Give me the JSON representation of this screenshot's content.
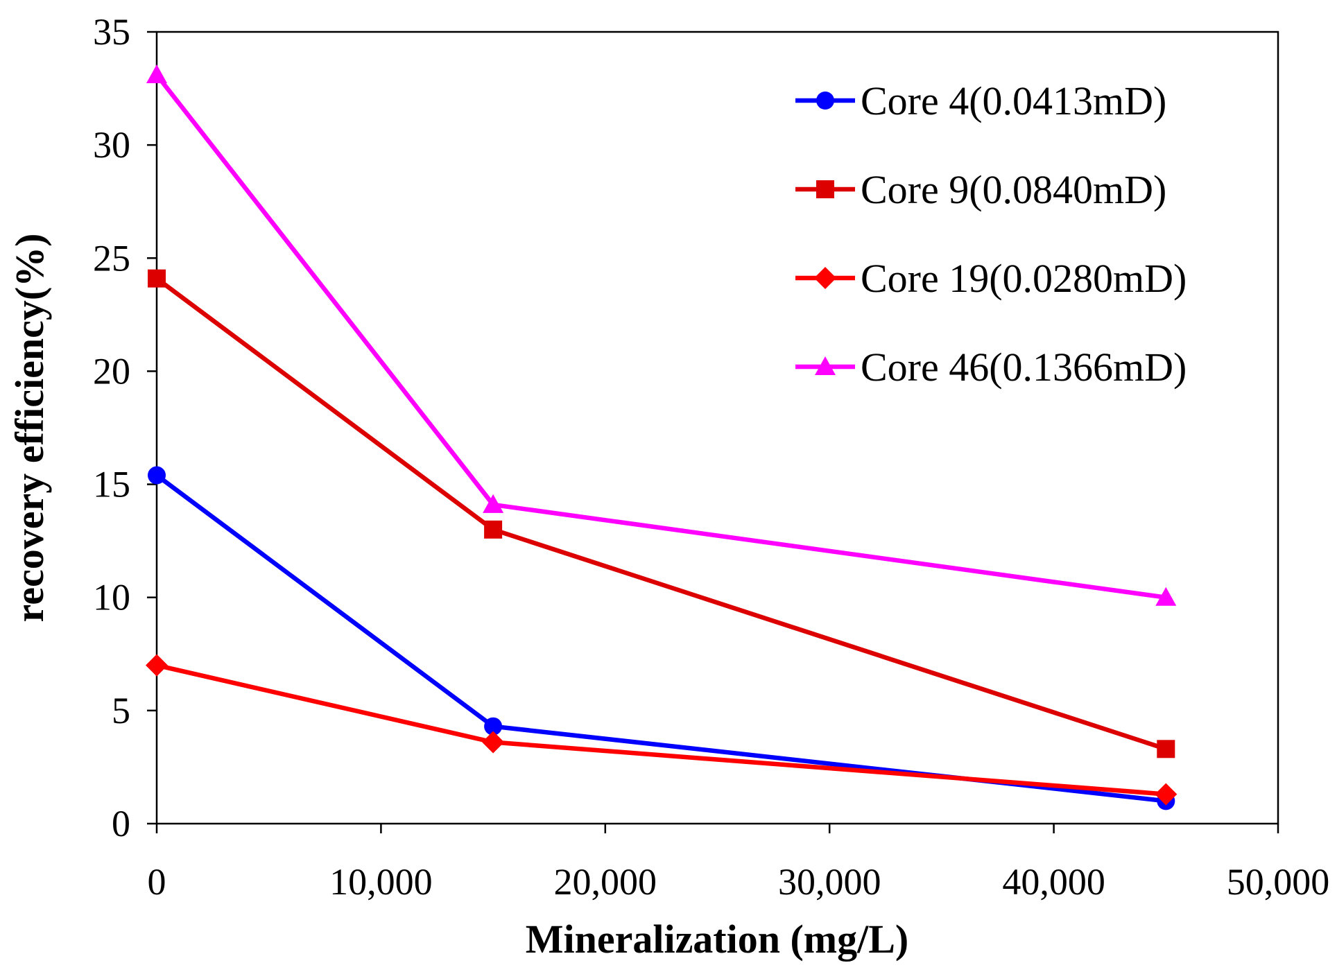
{
  "chart_data": {
    "type": "line",
    "title": "",
    "xlabel": "Mineralization (mg/L)",
    "ylabel": "recovery efficiency(%)",
    "xlim": [
      0,
      50000
    ],
    "ylim": [
      0,
      35
    ],
    "x_ticks": [
      0,
      10000,
      20000,
      30000,
      40000,
      50000
    ],
    "x_tick_labels": [
      "0",
      "10,000",
      "20,000",
      "30,000",
      "40,000",
      "50,000"
    ],
    "y_ticks": [
      0,
      5,
      10,
      15,
      20,
      25,
      30,
      35
    ],
    "y_tick_labels": [
      "0",
      "5",
      "10",
      "15",
      "20",
      "25",
      "30",
      "35"
    ],
    "grid": false,
    "legend_position": "top-right",
    "x": [
      0,
      15000,
      45000
    ],
    "series": [
      {
        "name": "Core 4(0.0413mD)",
        "values": [
          15.4,
          4.3,
          1.0
        ],
        "color": "#0000ff",
        "marker": "circle"
      },
      {
        "name": "Core 9(0.0840mD)",
        "values": [
          24.1,
          13.0,
          3.3
        ],
        "color": "#dd0000",
        "marker": "square"
      },
      {
        "name": "Core 19(0.0280mD)",
        "values": [
          7.0,
          3.6,
          1.3
        ],
        "color": "#ff0000",
        "marker": "diamond"
      },
      {
        "name": "Core 46(0.1366mD)",
        "values": [
          33.1,
          14.1,
          10.0
        ],
        "color": "#ff00ff",
        "marker": "triangle"
      }
    ]
  }
}
